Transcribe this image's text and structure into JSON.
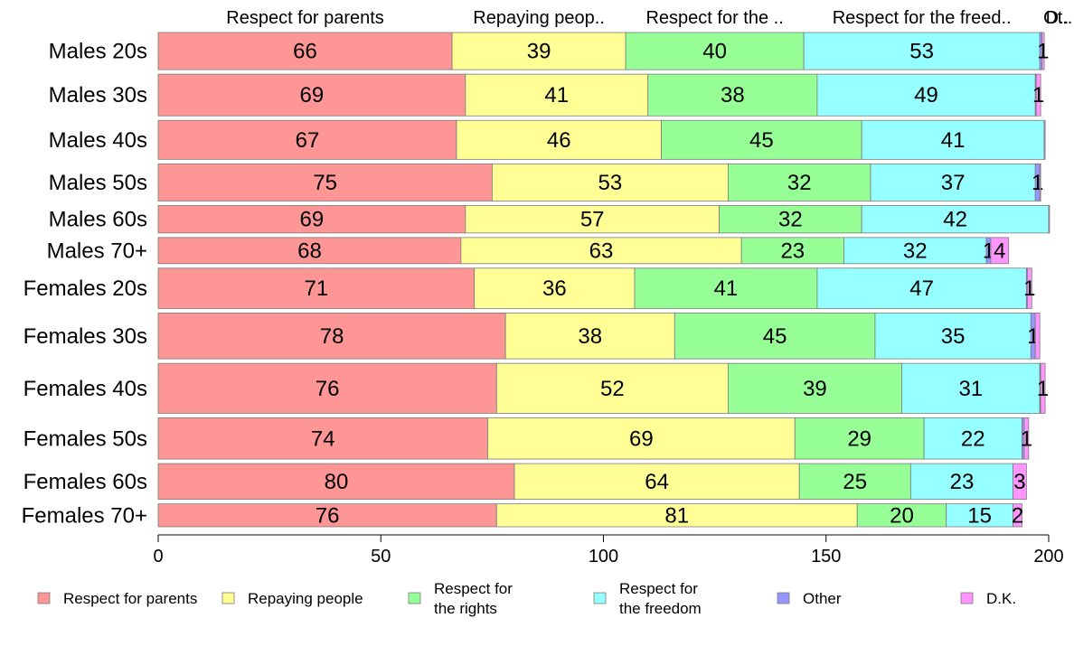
{
  "chart_data": {
    "type": "bar",
    "orientation": "horizontal",
    "stacked": true,
    "categories": [
      "Males 20s",
      "Males 30s",
      "Males 40s",
      "Males 50s",
      "Males 60s",
      "Males 70+",
      "Females 20s",
      "Females 30s",
      "Females 40s",
      "Females 50s",
      "Females 60s",
      "Females 70+"
    ],
    "series": [
      {
        "name": "Respect for parents",
        "top_label": "Respect for parents",
        "legend_lines": [
          "Respect for parents"
        ],
        "color": "#ff9696",
        "values": [
          66,
          69,
          67,
          75,
          69,
          68,
          71,
          78,
          76,
          74,
          80,
          76
        ]
      },
      {
        "name": "Repaying people",
        "top_label": "Repaying peop..",
        "legend_lines": [
          "Repaying people"
        ],
        "color": "#ffff96",
        "values": [
          39,
          41,
          46,
          53,
          57,
          63,
          36,
          38,
          52,
          69,
          64,
          81
        ]
      },
      {
        "name": "Respect for the rights",
        "top_label": "Respect for the ..",
        "legend_lines": [
          "Respect for",
          "the rights"
        ],
        "color": "#96ff96",
        "values": [
          40,
          38,
          45,
          32,
          32,
          23,
          41,
          45,
          39,
          29,
          25,
          20
        ]
      },
      {
        "name": "Respect for the freedom",
        "top_label": "Respect for the freed..",
        "legend_lines": [
          "Respect for",
          "the freedom"
        ],
        "color": "#96ffff",
        "values": [
          53,
          49,
          41,
          37,
          42,
          32,
          47,
          35,
          31,
          22,
          23,
          15
        ]
      },
      {
        "name": "Other",
        "top_label": "Ot..",
        "legend_lines": [
          "Other"
        ],
        "color": "#9696ff",
        "values": [
          0.5,
          0.2,
          0,
          1,
          0,
          1,
          0.2,
          1,
          0.2,
          0.5,
          0,
          0
        ]
      },
      {
        "name": "D.K.",
        "top_label": "D..",
        "legend_lines": [
          "D.K."
        ],
        "color": "#ff96ff",
        "values": [
          0.5,
          1,
          0.2,
          0.2,
          0.2,
          4,
          1,
          1,
          1,
          1,
          3,
          2
        ]
      }
    ],
    "data_labels": [
      [
        "66",
        "39",
        "40",
        "53",
        "",
        "1"
      ],
      [
        "69",
        "41",
        "38",
        "49",
        "",
        "1"
      ],
      [
        "67",
        "46",
        "45",
        "41",
        "",
        ""
      ],
      [
        "75",
        "53",
        "32",
        "37",
        "1",
        ""
      ],
      [
        "69",
        "57",
        "32",
        "42",
        "",
        ""
      ],
      [
        "68",
        "63",
        "23",
        "32",
        "1",
        "4"
      ],
      [
        "71",
        "36",
        "41",
        "47",
        "",
        "1"
      ],
      [
        "78",
        "38",
        "45",
        "35",
        "1",
        ""
      ],
      [
        "76",
        "52",
        "39",
        "31",
        "",
        "1"
      ],
      [
        "74",
        "69",
        "29",
        "22",
        "",
        "1"
      ],
      [
        "80",
        "64",
        "25",
        "23",
        "",
        "3"
      ],
      [
        "76",
        "81",
        "20",
        "15",
        "",
        "2"
      ]
    ],
    "row_weights": [
      0.81,
      0.91,
      0.85,
      0.81,
      0.6,
      0.57,
      0.88,
      1.0,
      1.09,
      0.9,
      0.78,
      0.5
    ],
    "x_ticks": [
      "0",
      "50",
      "100",
      "150",
      "200"
    ],
    "xlim": [
      0,
      200
    ],
    "xlabel": "",
    "ylabel": "",
    "title": "",
    "grid": false,
    "legend_position": "bottom"
  }
}
